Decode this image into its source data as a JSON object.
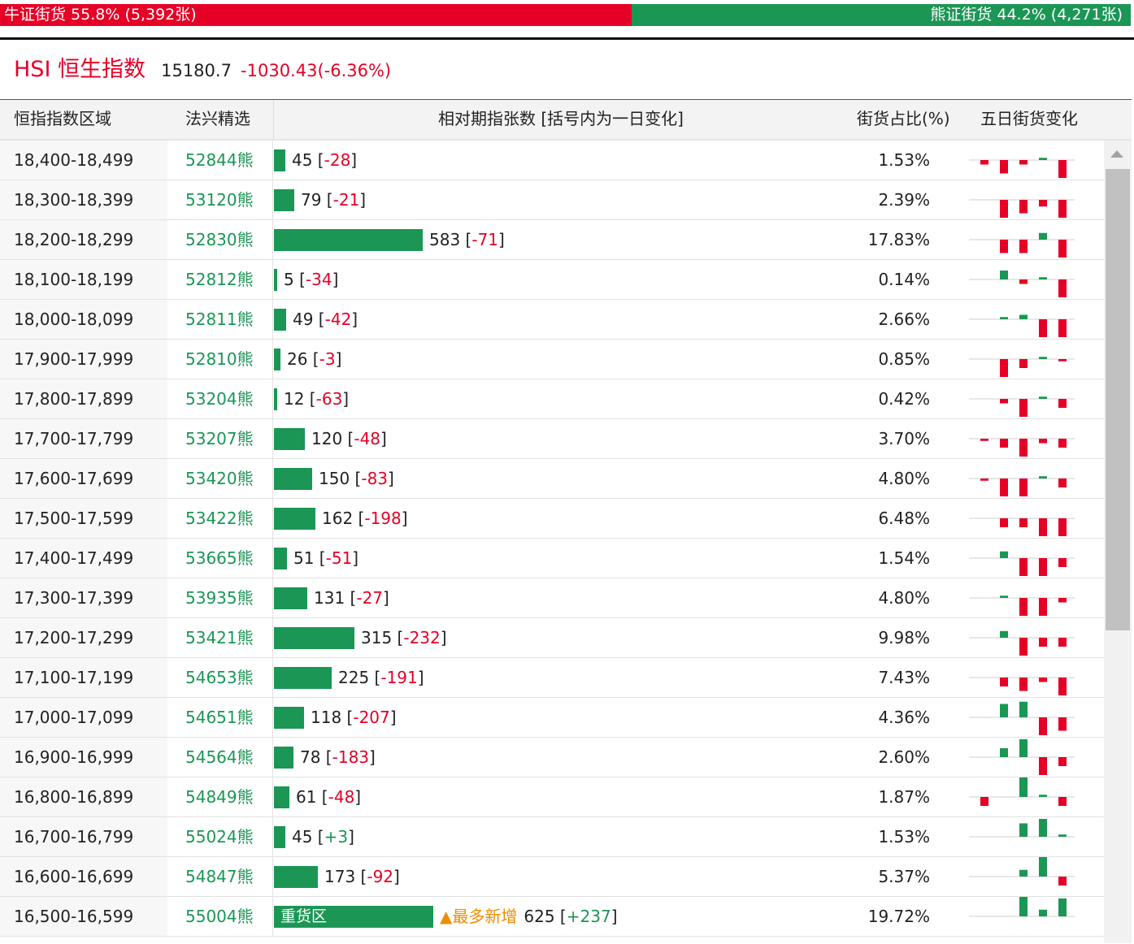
{
  "summary": {
    "bull_label": "牛证街货 55.8% (5,392张)",
    "bear_label": "熊证街货 44.2% (4,271张)",
    "bull_share": 55.8,
    "bear_share": 44.2,
    "bull_color": "#e60026",
    "bear_color": "#1b9655"
  },
  "index": {
    "name": "HSI 恒生指数",
    "value": "15180.7",
    "change": "-1030.43(-6.36%)"
  },
  "headers": {
    "range": "恒指指数区域",
    "pick": "法兴精选",
    "count": "相对期指张数 [括号内为一日变化]",
    "share": "街货占比(%)",
    "trend": "五日街货变化"
  },
  "rows": [
    {
      "range": "18,400-18,499",
      "pick": "52844熊",
      "count": "45",
      "change": "-28",
      "share": "1.53%",
      "trend": [
        -1,
        -3,
        -1,
        0.5,
        -4
      ]
    },
    {
      "range": "18,300-18,399",
      "pick": "53120熊",
      "count": "79",
      "change": "-21",
      "share": "2.39%",
      "trend": [
        0,
        -4,
        -3,
        -1.5,
        -4
      ]
    },
    {
      "range": "18,200-18,299",
      "pick": "52830熊",
      "count": "583",
      "change": "-71",
      "share": "17.83%",
      "trend": [
        0,
        -3,
        -3,
        1.5,
        -4
      ]
    },
    {
      "range": "18,100-18,199",
      "pick": "52812熊",
      "count": "5",
      "change": "-34",
      "share": "0.14%",
      "trend": [
        0,
        2,
        -1,
        0.5,
        -4
      ]
    },
    {
      "range": "18,000-18,099",
      "pick": "52811熊",
      "count": "49",
      "change": "-42",
      "share": "2.66%",
      "trend": [
        0,
        0.5,
        1,
        -4,
        -4
      ]
    },
    {
      "range": "17,900-17,999",
      "pick": "52810熊",
      "count": "26",
      "change": "-3",
      "share": "0.85%",
      "trend": [
        0,
        -4,
        -2,
        0.5,
        -0.5
      ]
    },
    {
      "range": "17,800-17,899",
      "pick": "53204熊",
      "count": "12",
      "change": "-63",
      "share": "0.42%",
      "trend": [
        0,
        -1,
        -4,
        0.5,
        -2
      ]
    },
    {
      "range": "17,700-17,799",
      "pick": "53207熊",
      "count": "120",
      "change": "-48",
      "share": "3.70%",
      "trend": [
        -0.5,
        -2,
        -4,
        -1,
        -2
      ]
    },
    {
      "range": "17,600-17,699",
      "pick": "53420熊",
      "count": "150",
      "change": "-83",
      "share": "4.80%",
      "trend": [
        -0.5,
        -4,
        -4,
        0.5,
        -2
      ]
    },
    {
      "range": "17,500-17,599",
      "pick": "53422熊",
      "count": "162",
      "change": "-198",
      "share": "6.48%",
      "trend": [
        0,
        -2,
        -2,
        -4,
        -4
      ]
    },
    {
      "range": "17,400-17,499",
      "pick": "53665熊",
      "count": "51",
      "change": "-51",
      "share": "1.54%",
      "trend": [
        0,
        1.5,
        -4,
        -4,
        -2
      ]
    },
    {
      "range": "17,300-17,399",
      "pick": "53935熊",
      "count": "131",
      "change": "-27",
      "share": "4.80%",
      "trend": [
        0,
        0.5,
        -4,
        -4,
        -1
      ]
    },
    {
      "range": "17,200-17,299",
      "pick": "53421熊",
      "count": "315",
      "change": "-232",
      "share": "9.98%",
      "trend": [
        0,
        1.5,
        -4,
        -2,
        -2
      ]
    },
    {
      "range": "17,100-17,199",
      "pick": "54653熊",
      "count": "225",
      "change": "-191",
      "share": "7.43%",
      "trend": [
        0,
        -2,
        -3,
        -1,
        -4
      ]
    },
    {
      "range": "17,000-17,099",
      "pick": "54651熊",
      "count": "118",
      "change": "-207",
      "share": "4.36%",
      "trend": [
        0,
        3,
        3.5,
        -4,
        -3
      ]
    },
    {
      "range": "16,900-16,999",
      "pick": "54564熊",
      "count": "78",
      "change": "-183",
      "share": "2.60%",
      "trend": [
        0,
        2,
        4,
        -4,
        -2
      ]
    },
    {
      "range": "16,800-16,899",
      "pick": "54849熊",
      "count": "61",
      "change": "-48",
      "share": "1.87%",
      "trend": [
        -2,
        0,
        4.5,
        0.5,
        -2
      ]
    },
    {
      "range": "16,700-16,799",
      "pick": "55024熊",
      "count": "45",
      "change": "+3",
      "share": "1.53%",
      "trend": [
        0,
        0,
        3,
        4,
        0.5
      ]
    },
    {
      "range": "16,600-16,699",
      "pick": "54847熊",
      "count": "173",
      "change": "-92",
      "share": "5.37%",
      "trend": [
        0,
        0,
        1.5,
        4.5,
        -2
      ]
    },
    {
      "range": "16,500-16,599",
      "pick": "55004熊",
      "count": "625",
      "change": "+237",
      "share": "19.72%",
      "trend": [
        0,
        0,
        4.5,
        1.5,
        4
      ],
      "bar_label": "重货区",
      "hot_label": "▲最多新增"
    }
  ],
  "colors": {
    "bar": "#1b9655",
    "spark_up": "#1b9655",
    "spark_down": "#e60026",
    "negative": "#e60026",
    "positive": "#1b9655"
  }
}
